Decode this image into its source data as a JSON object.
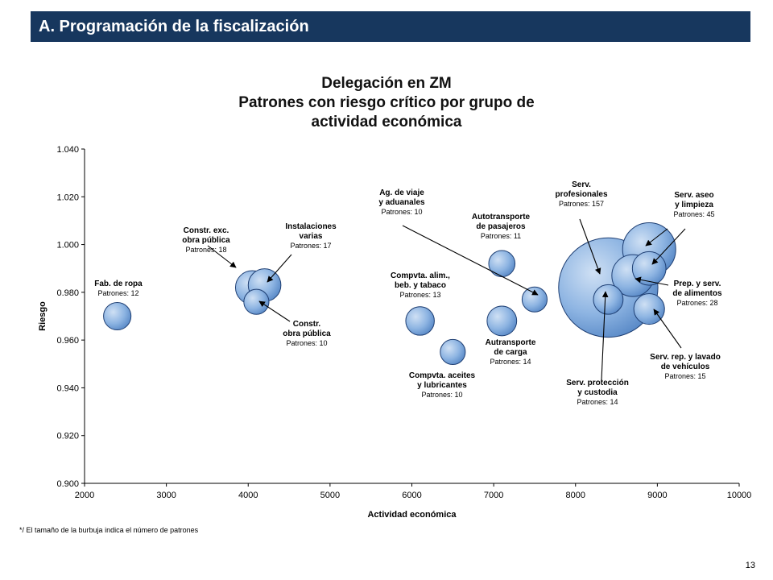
{
  "header": {
    "title": "A. Programación de la fiscalización"
  },
  "chart_data": {
    "type": "scatter",
    "title_lines": [
      "Delegación  en ZM",
      "Patrones con riesgo crítico por grupo de",
      "actividad económica"
    ],
    "xlabel": "Actividad económica",
    "ylabel": "Riesgo",
    "xlim": [
      2000,
      10000
    ],
    "ylim": [
      0.9,
      1.04
    ],
    "x_ticks": [
      "2000",
      "3000",
      "4000",
      "5000",
      "6000",
      "7000",
      "8000",
      "9000",
      "10000"
    ],
    "y_ticks": [
      "1.040",
      "1.020",
      "1.000",
      "0.980",
      "0.960",
      "0.940",
      "0.920",
      "0.900"
    ],
    "bubble_color": "#8db4e2",
    "points": [
      {
        "name": "Fab. de ropa",
        "x": 2400,
        "y": 0.97,
        "size": 12,
        "label_lines": [
          "Fab. de ropa"
        ],
        "count_text": "Patrones: 12"
      },
      {
        "name": "Constr. exc. obra pública",
        "x": 4050,
        "y": 0.982,
        "size": 18,
        "label_lines": [
          "Constr. exc.",
          "obra pública"
        ],
        "count_text": "Patrones: 18"
      },
      {
        "name": "Instalaciones varias",
        "x": 4200,
        "y": 0.983,
        "size": 17,
        "label_lines": [
          "Instalaciones",
          "varias"
        ],
        "count_text": "Patrones: 17"
      },
      {
        "name": "Constr. obra pública",
        "x": 4100,
        "y": 0.976,
        "size": 10,
        "label_lines": [
          "Constr.",
          "obra pública"
        ],
        "count_text": "Patrones: 10"
      },
      {
        "name": "Compvta. alim., beb. y tabaco",
        "x": 6100,
        "y": 0.968,
        "size": 13,
        "label_lines": [
          "Compvta. alim.,",
          "beb. y tabaco"
        ],
        "count_text": "Patrones: 13"
      },
      {
        "name": "Compvta. aceites y lubricantes",
        "x": 6500,
        "y": 0.955,
        "size": 10,
        "label_lines": [
          "Compvta. aceites",
          "y lubricantes"
        ],
        "count_text": "Patrones: 10"
      },
      {
        "name": "Autotransporte de pasajeros",
        "x": 7100,
        "y": 0.992,
        "size": 11,
        "label_lines": [
          "Autotransporte",
          "de pasajeros"
        ],
        "count_text": "Patrones: 11"
      },
      {
        "name": "Autransporte de carga",
        "x": 7100,
        "y": 0.968,
        "size": 14,
        "label_lines": [
          "Autransporte",
          "de carga"
        ],
        "count_text": "Patrones: 14"
      },
      {
        "name": "Ag. de viaje y aduanales",
        "x": 7500,
        "y": 0.977,
        "size": 10,
        "label_lines": [
          "Ag. de viaje",
          "y aduanales"
        ],
        "count_text": "Patrones: 10"
      },
      {
        "name": "Serv. profesionales",
        "x": 8400,
        "y": 0.982,
        "size": 157,
        "label_lines": [
          "Serv.",
          "profesionales"
        ],
        "count_text": "Patrones: 157"
      },
      {
        "name": "Serv. protección y custodia",
        "x": 8400,
        "y": 0.977,
        "size": 14,
        "label_lines": [
          "Serv. protección",
          "y custodia"
        ],
        "count_text": "Patrones: 14"
      },
      {
        "name": "Prep. y serv. de alimentos",
        "x": 8700,
        "y": 0.987,
        "size": 28,
        "label_lines": [
          "Prep. y serv.",
          "de alimentos"
        ],
        "count_text": "Patrones: 28"
      },
      {
        "name": "Serv. aseo y limpieza",
        "x": 8900,
        "y": 0.998,
        "size": 45,
        "label_lines": [
          "Serv. aseo",
          "y limpieza"
        ],
        "count_text": "Patrones: 45"
      },
      {
        "name": "Serv. aseo y limpieza (2)",
        "x": 8900,
        "y": 0.99,
        "size": 18,
        "label_lines": [],
        "count_text": ""
      },
      {
        "name": "Serv. rep. y lavado de vehículos",
        "x": 8900,
        "y": 0.973,
        "size": 15,
        "label_lines": [
          "Serv. rep. y lavado",
          "de vehículos"
        ],
        "count_text": "Patrones: 15"
      }
    ]
  },
  "footnote": "*/ El tamaño de la burbuja indica el número de patrones",
  "page_number": "13"
}
